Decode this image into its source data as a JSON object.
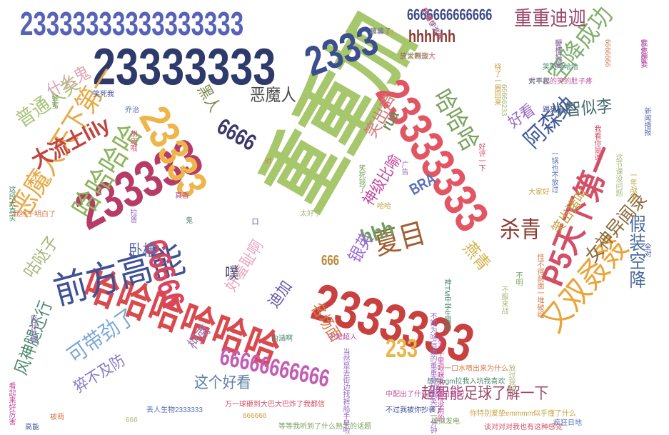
{
  "words": [
    {
      "t": "23333333333333333",
      "c": "#5562b8"
    },
    {
      "t": "23333333",
      "c": "#2d3a6b"
    },
    {
      "t": "重重加",
      "c": "#a6c76b"
    },
    {
      "t": "23333333",
      "c": "#e25563"
    },
    {
      "t": "2333333",
      "c": "#c8413f"
    },
    {
      "t": "哈哈哈哈哈哈",
      "c": "#d94a4e"
    },
    {
      "t": "233333",
      "c": "#b63c67"
    },
    {
      "t": "23333",
      "c": "#eeb54a"
    },
    {
      "t": "前方高能",
      "c": "#3f5196"
    },
    {
      "t": "2333",
      "c": "#3c4e8f"
    },
    {
      "t": "66666666666",
      "c": "#c45cb6"
    },
    {
      "t": "6666666666666",
      "c": "#3d4a8a"
    },
    {
      "t": "恶魔人天下第一",
      "c": "#e8a945"
    },
    {
      "t": "大流士lily",
      "c": "#c0453f"
    },
    {
      "t": "哈哈哈哈",
      "c": "#8cb55e"
    },
    {
      "t": "又双叒叕",
      "c": "#e9a53a"
    },
    {
      "t": "P5天下第一",
      "c": "#d24f67"
    },
    {
      "t": "空降成功",
      "c": "#7fb06e"
    },
    {
      "t": "重重迪迦",
      "c": "#9a4a6b"
    },
    {
      "t": "哈哈哈",
      "c": "#7ba25e"
    },
    {
      "t": "阿森纳",
      "c": "#3f5a96"
    },
    {
      "t": "夏目",
      "c": "#a35c2f"
    },
    {
      "t": "杀青",
      "c": "#8a3a2f"
    },
    {
      "t": "hhh",
      "c": "#6aa05e"
    },
    {
      "t": "6666",
      "c": "#3d3a6b"
    },
    {
      "t": "66666",
      "c": "#d8455c"
    },
    {
      "t": "恶魔人",
      "c": "#4c4c4c"
    },
    {
      "t": "小智似李",
      "c": "#4a6c6e"
    },
    {
      "t": "可带劲了",
      "c": "#7ca8d6"
    },
    {
      "t": "风神腿还行",
      "c": "#4a8a6e"
    },
    {
      "t": "这个好看",
      "c": "#5f7fa6"
    },
    {
      "t": "超智能足球了解一下",
      "c": "#9c4a6e"
    },
    {
      "t": "假装空降",
      "c": "#4a6a9e"
    },
    {
      "t": "笑出猪叫",
      "c": "#c7a441"
    },
    {
      "t": "女神异闻录",
      "c": "#8c6a3a"
    },
    {
      "t": "好看",
      "c": "#9a6ac4"
    },
    {
      "t": "燕青",
      "c": "#d4b04a"
    },
    {
      "t": "好羞耻啊",
      "c": "#e8a8c4"
    },
    {
      "t": "233",
      "c": "#e8b54a"
    },
    {
      "t": "普通人类",
      "c": "#a8c47a"
    },
    {
      "t": "什么鬼",
      "c": "#e3a5b5"
    },
    {
      "t": "hhhhhh",
      "c": "#8a3a2f"
    },
    {
      "t": "笑出声",
      "c": "#d47a7a"
    },
    {
      "t": "神级比喻",
      "c": "#c04a9e"
    },
    {
      "t": "BRA",
      "c": "#5a72b8"
    },
    {
      "t": "银英",
      "c": "#9c6ad4"
    },
    {
      "t": "咕哒子",
      "c": "#a8b87a"
    },
    {
      "t": "卧槽",
      "c": "#5a6aa8"
    },
    {
      "t": "噗",
      "c": "#4a4a6a"
    },
    {
      "t": "迪加",
      "c": "#6a5aa8"
    },
    {
      "t": "柯南",
      "c": "#9a7ab8"
    },
    {
      "t": "猝不及防",
      "c": "#8a7ac4"
    },
    {
      "t": "rua",
      "c": "#6a8a5a"
    },
    {
      "t": "黑人",
      "c": "#7a8a4a"
    },
    {
      "t": "666",
      "c": "#b88a3a"
    },
    {
      "t": "名场面",
      "c": "#d47a4a"
    }
  ],
  "small": [
    "真香ing",
    "我要学游泳",
    "放大再放大",
    "卧槽好亮",
    "666666",
    "大半夜的笑的肚子疼",
    "笑哭哈哈哈",
    "6666666",
    "踢死鬼子",
    "66666233",
    "绕了一圈回来",
    "一锅也不放过",
    "好评一下",
    "笑死我了",
    "广告",
    "真香",
    "鬼",
    "对",
    "口",
    "太好了",
    "哈哈",
    "乔治",
    "胡庆哦",
    "蜂蜜",
    "拉普",
    "不是超人",
    "内涵啊",
    "被萌",
    "高能",
    "666",
    "666666",
    "丢人生物2333333",
    "万一球砸到大巴大巴炸了我都信",
    "等等我听到了什么熟悉的话题",
    "当然是去街边找裤船手早啦",
    "中配出了什么打算出蓝配",
    "想用bgm拉我入坑我喜欢",
    "一口水喷出来为什么",
    "不过我被你抄袭了",
    "放过我吧",
    "你特别爱挚emmmm似乎懂了什么",
    "疯狂日地",
    "谈对对对我也有这种感觉",
    "模拟发电",
    "不知为啥后面的重重叠加我笑了一分钟",
    "对于干里眼眯来说是没用的",
    "神TM中学生踢的",
    "怪不得前面一堆破绽",
    "全对",
    "这节课没问题",
    "一年战争",
    "新闻播报",
    "我看你是谁",
    "不明",
    "疯狂吐槽",
    "看起来好厉害",
    "这段太真实",
    "我终于明白了",
    "笑死我",
    "不服来战",
    "大家好",
    "被骗了",
    "卧槽什么鬼",
    "天堂制造",
    "硬核马尾",
    "我也想要",
    "对不起"
  ]
}
